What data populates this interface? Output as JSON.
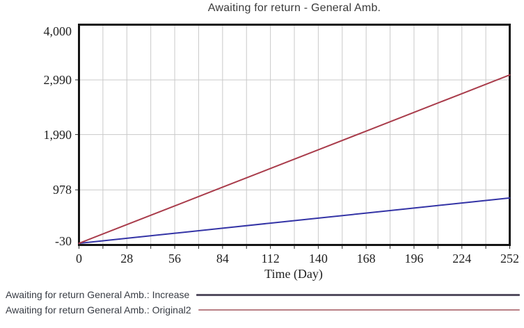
{
  "title": "Awaiting for return - General Amb.",
  "xlabel": "Time (Day)",
  "colors": {
    "grid": "#c9c9c9",
    "frame": "#141414",
    "tick": "#2a2a2a",
    "title_text": "#3a3a3a",
    "legend_text": "#383c44"
  },
  "legend": {
    "items": [
      {
        "label": "Awaiting for return General Amb.: Increase",
        "line_color": "#544e60"
      },
      {
        "label": "Awaiting for return General Amb.: Original2",
        "line_color": "#b97f85"
      }
    ]
  },
  "chart_data": {
    "type": "line",
    "title": "Awaiting for return - General Amb.",
    "xlabel": "Time (Day)",
    "ylabel": "",
    "xlim": [
      0,
      252
    ],
    "ylim": [
      -30,
      4000
    ],
    "grid": {
      "x_interval": 14,
      "y_lines_at": [
        2990,
        1990,
        978
      ]
    },
    "x_ticks": [
      0,
      28,
      56,
      84,
      112,
      140,
      168,
      196,
      224,
      252
    ],
    "y_ticks": [
      {
        "value": 4000,
        "label": "4,000"
      },
      {
        "value": 2990,
        "label": "2,990"
      },
      {
        "value": 1990,
        "label": "1,990"
      },
      {
        "value": 978,
        "label": "978"
      },
      {
        "value": -30,
        "label": "-30"
      }
    ],
    "legend_position": "bottom-left",
    "series": [
      {
        "name": "Awaiting for return General Amb.: Increase",
        "color": "#3434a6",
        "x": [
          0,
          28,
          56,
          84,
          112,
          140,
          168,
          196,
          224,
          252
        ],
        "y": [
          0,
          92,
          184,
          277,
          369,
          461,
          553,
          646,
          738,
          830
        ]
      },
      {
        "name": "Awaiting for return General Amb.: Original2",
        "color": "#a93c4b",
        "x": [
          0,
          28,
          56,
          84,
          112,
          140,
          168,
          196,
          224,
          252
        ],
        "y": [
          0,
          342,
          684,
          1027,
          1369,
          1711,
          2053,
          2396,
          2738,
          3080
        ]
      }
    ]
  }
}
